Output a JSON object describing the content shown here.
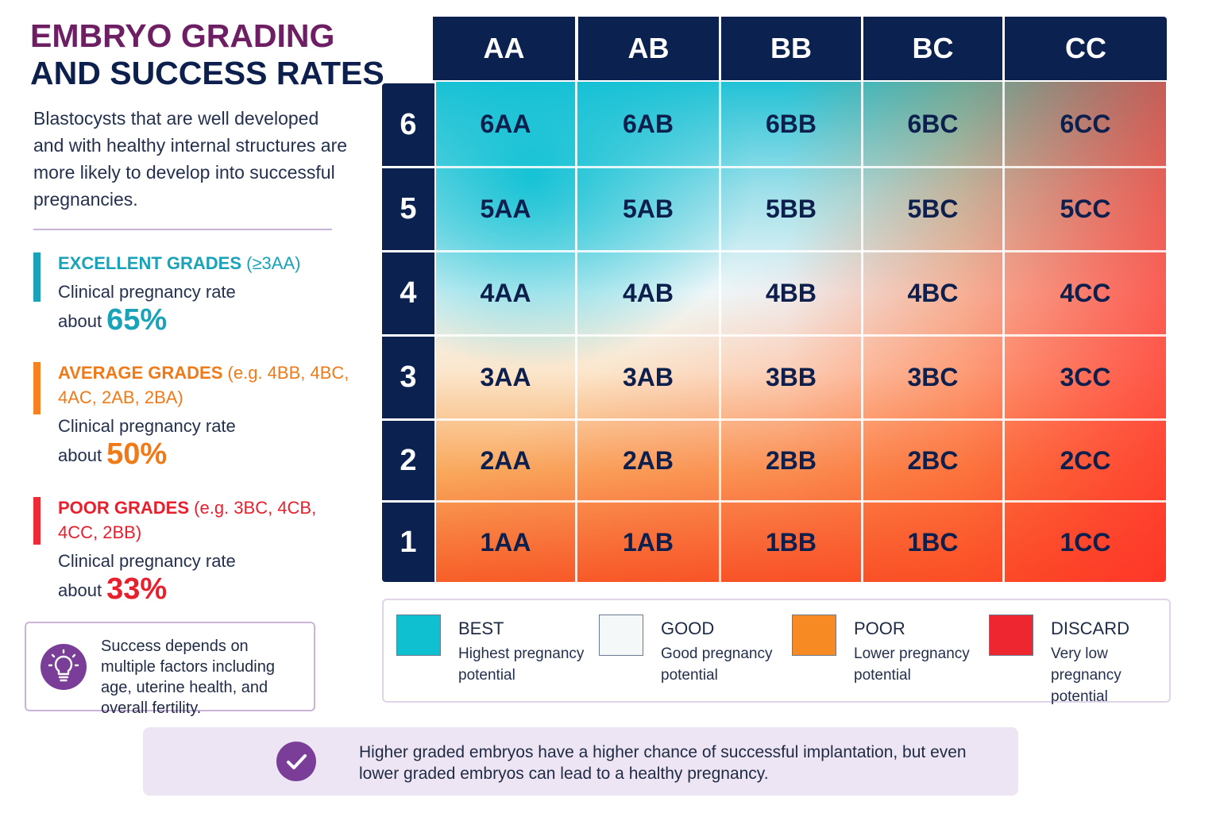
{
  "title": {
    "line1": "EMBRYO GRADING",
    "line2": "AND SUCCESS RATES"
  },
  "intro": "Blastocysts that are well developed and with healthy internal structures are more likely to develop into successful pregnancies.",
  "grades": [
    {
      "label": "EXCELLENT GRADES",
      "examples": "(≥3AA)",
      "rate_label": "Clinical pregnancy rate",
      "about": "about",
      "percent": "65%",
      "color": "#1aa3b8"
    },
    {
      "label": "AVERAGE GRADES",
      "examples": "(e.g. 4BB, 4BC, 4AC, 2AB, 2BA)",
      "rate_label": "Clinical pregnancy rate",
      "about": "about",
      "percent": "50%",
      "color": "#f07a18"
    },
    {
      "label": "POOR GRADES",
      "examples": "(e.g. 3BC, 4CB, 4CC, 2BB)",
      "rate_label": "Clinical pregnancy rate",
      "about": "about",
      "percent": "33%",
      "color": "#e8202e"
    }
  ],
  "tip": {
    "icon": "lightbulb-icon",
    "text": "Success depends on multiple factors including age, uterine health, and overall fertility."
  },
  "grid": {
    "columns": [
      "AA",
      "AB",
      "BB",
      "BC",
      "CC"
    ],
    "rows": [
      "6",
      "5",
      "4",
      "3",
      "2",
      "1"
    ],
    "cells": [
      [
        "6AA",
        "6AB",
        "6BB",
        "6BC",
        "6CC"
      ],
      [
        "5AA",
        "5AB",
        "5BB",
        "5BC",
        "5CC"
      ],
      [
        "4AA",
        "4AB",
        "4BB",
        "4BC",
        "4CC"
      ],
      [
        "3AA",
        "3AB",
        "3BB",
        "3BC",
        "3CC"
      ],
      [
        "2AA",
        "2AB",
        "2BB",
        "2BC",
        "2CC"
      ],
      [
        "1AA",
        "1AB",
        "1BB",
        "1BC",
        "1CC"
      ]
    ],
    "header_color": "#0b2150"
  },
  "legend": [
    {
      "name": "BEST",
      "desc": "Highest pregnancy potential",
      "color": "#0ec0d0"
    },
    {
      "name": "GOOD",
      "desc": "Good pregnancy potential",
      "color": "#f4f8f9"
    },
    {
      "name": "POOR",
      "desc": "Lower pregnancy potential",
      "color": "#f78a22"
    },
    {
      "name": "DISCARD",
      "desc": "Very low pregnancy potential",
      "color": "#ee2630"
    }
  ],
  "banner": {
    "icon": "check-circle-icon",
    "text": "Higher graded embryos have a higher chance of successful implantation, but even lower graded embryos can lead to a healthy pregnancy."
  }
}
